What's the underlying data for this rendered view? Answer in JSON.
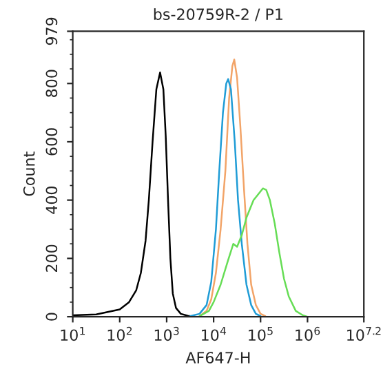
{
  "chart_data": {
    "type": "line",
    "title": "bs-20759R-2 / P1",
    "xlabel": "AF647-H",
    "ylabel": "Count",
    "log": "x",
    "xlim": [
      10,
      15848932
    ],
    "ylim": [
      0,
      979
    ],
    "xticks": [
      {
        "value": 10,
        "label": "10$^{1}$"
      },
      {
        "value": 100,
        "label": "10$^{2}$"
      },
      {
        "value": 1000,
        "label": "10$^{3}$"
      },
      {
        "value": 10000,
        "label": "10$^{4}$"
      },
      {
        "value": 100000,
        "label": "10$^{5}$"
      },
      {
        "value": 1000000,
        "label": "10$^{6}$"
      },
      {
        "value": 15848932,
        "label": "10$^{7.2}$"
      }
    ],
    "yticks": [
      0,
      200,
      400,
      600,
      800,
      979
    ],
    "grid": false,
    "legend": false,
    "marker": "none",
    "line_style": "solid",
    "series": [
      {
        "color": "#000000",
        "x": [
          10,
          31.6,
          100,
          158,
          224,
          282,
          355,
          417,
          501,
          603,
          724,
          851,
          955,
          1070,
          1200,
          1350,
          1580,
          2000,
          2820,
          3980
        ],
        "values": [
          5,
          8,
          25,
          50,
          90,
          150,
          260,
          400,
          600,
          780,
          838,
          780,
          620,
          400,
          200,
          80,
          30,
          10,
          3,
          0
        ]
      },
      {
        "color": "#f2a468",
        "x": [
          5010,
          7080,
          8910,
          11200,
          14100,
          17800,
          21400,
          25100,
          27500,
          31600,
          37200,
          44700,
          52500,
          63100,
          79400,
          100000,
          126000
        ],
        "values": [
          2,
          20,
          60,
          150,
          300,
          500,
          750,
          860,
          882,
          820,
          650,
          430,
          250,
          110,
          40,
          10,
          2
        ]
      },
      {
        "color": "#1f9cd6",
        "x": [
          3160,
          5010,
          7080,
          8910,
          11200,
          13200,
          15800,
          18600,
          20400,
          23400,
          28200,
          33100,
          39800,
          50100,
          63100,
          79400,
          100000
        ],
        "values": [
          2,
          10,
          40,
          120,
          300,
          500,
          700,
          800,
          815,
          780,
          600,
          400,
          250,
          110,
          40,
          10,
          2
        ]
      },
      {
        "color": "#66dd55",
        "x": [
          5010,
          7940,
          10000,
          14100,
          20000,
          26300,
          31600,
          39800,
          50100,
          70800,
          89100,
          112000,
          132000,
          158000,
          200000,
          251000,
          316000,
          398000,
          562000,
          794000,
          1000000
        ],
        "values": [
          2,
          20,
          50,
          110,
          190,
          250,
          240,
          280,
          340,
          400,
          420,
          440,
          435,
          400,
          320,
          220,
          130,
          70,
          20,
          5,
          0
        ]
      }
    ]
  }
}
